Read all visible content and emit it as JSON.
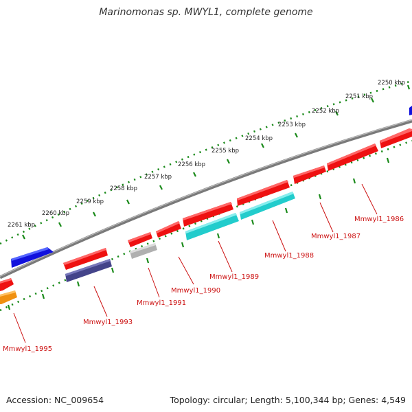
{
  "title": "Marinomonas sp. MWYL1, complete genome",
  "footer": {
    "accession": "Accession: NC_009654",
    "summary": "Topology: circular; Length: 5,100,344 bp; Genes: 4,549"
  },
  "colors": {
    "backbone": "#7f7f7f",
    "tick": "#1a8a1a",
    "gene_red": "#ee1111",
    "gene_cyan": "#22cccc",
    "gene_navy": "#44448a",
    "gene_blue": "#1111dd",
    "gene_gray": "#b0b0b0",
    "gene_orange": "#f09010",
    "label": "#cc1111"
  },
  "kbp_labels": [
    "2250 kbp",
    "2251 kbp",
    "2252 kbp",
    "2253 kbp",
    "2254 kbp",
    "2255 kbp",
    "2256 kbp",
    "2257 kbp",
    "2258 kbp",
    "2259 kbp",
    "2260 kbp",
    "2261 kbp"
  ],
  "gene_labels": [
    "Mmwyl1_1986",
    "Mmwyl1_1987",
    "Mmwyl1_1988",
    "Mmwyl1_1989",
    "Mmwyl1_1990",
    "Mmwyl1_1991",
    "Mmwyl1_1993",
    "Mmwyl1_1995"
  ]
}
